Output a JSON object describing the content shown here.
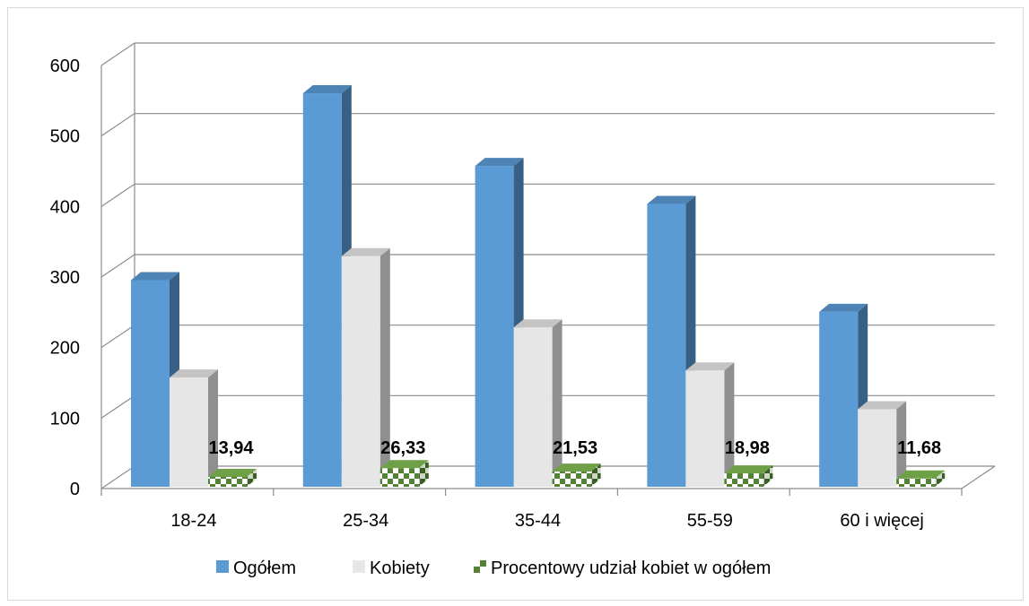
{
  "chart_data": {
    "type": "bar",
    "style": "3d-clustered-column",
    "title": "",
    "xlabel": "",
    "ylabel": "",
    "ylim": [
      0,
      600
    ],
    "yticks": [
      "0",
      "100",
      "200",
      "300",
      "400",
      "500",
      "600"
    ],
    "categories": [
      "18-24",
      "25-34",
      "35-44",
      "55-59",
      "60 i więcej"
    ],
    "series": [
      {
        "name": "Ogółem",
        "values": [
          293,
          558,
          455,
          401,
          248
        ],
        "color": "#5b9bd5"
      },
      {
        "name": "Kobiety",
        "values": [
          155,
          327,
          226,
          165,
          110
        ],
        "color": "#e7e6e6"
      },
      {
        "name": "Procentowy udział kobiet w ogółem",
        "values": [
          13.94,
          26.33,
          21.53,
          18.98,
          11.68
        ],
        "color": "#548235",
        "pattern": "checker"
      }
    ],
    "data_labels": [
      "13,94",
      "26,33",
      "21,53",
      "18,98",
      "11,68"
    ],
    "grid": true,
    "legend_position": "bottom"
  }
}
